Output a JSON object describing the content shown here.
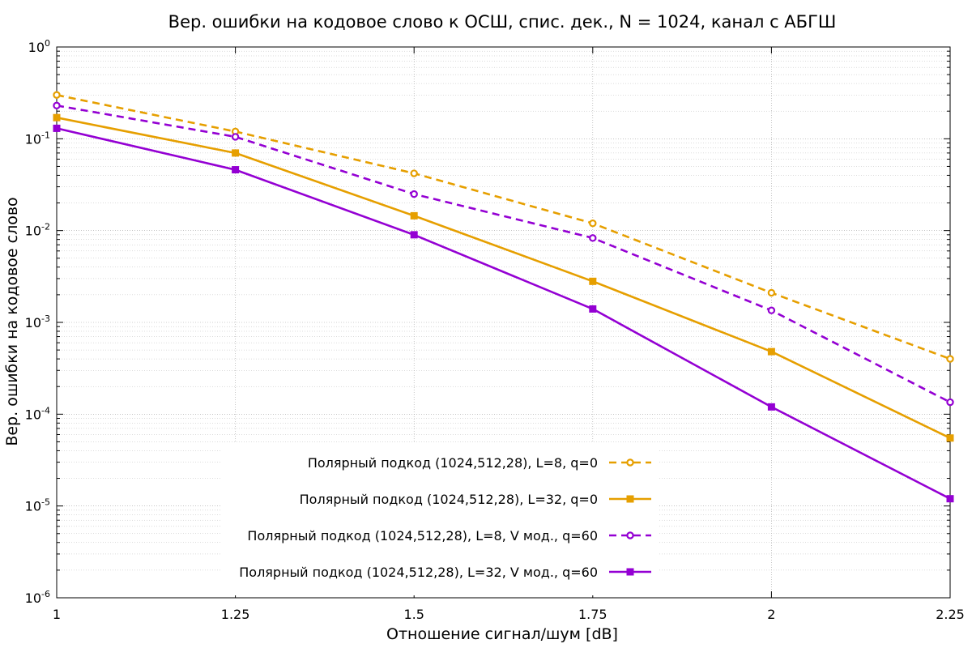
{
  "chart_data": {
    "type": "line",
    "title": "Вер. ошибки на кодовое слово к ОСШ, спис. дек., N = 1024, канал с АБГШ",
    "xlabel": "Отношение сигнал/шум [dB]",
    "ylabel": "Вер. ошибки на кодовое слово",
    "xlim": [
      1,
      2.25
    ],
    "ylim": [
      1e-06,
      1
    ],
    "yscale": "log",
    "grid": true,
    "x_ticks": [
      {
        "value": 1,
        "label": "1"
      },
      {
        "value": 1.25,
        "label": "1.25"
      },
      {
        "value": 1.5,
        "label": "1.5"
      },
      {
        "value": 1.75,
        "label": "1.75"
      },
      {
        "value": 2,
        "label": "2"
      },
      {
        "value": 2.25,
        "label": "2.25"
      }
    ],
    "y_ticks": [
      {
        "exp": 0,
        "base": "10",
        "sup": "0"
      },
      {
        "exp": -1,
        "base": "10",
        "sup": "-1"
      },
      {
        "exp": -2,
        "base": "10",
        "sup": "-2"
      },
      {
        "exp": -3,
        "base": "10",
        "sup": "-3"
      },
      {
        "exp": -4,
        "base": "10",
        "sup": "-4"
      },
      {
        "exp": -5,
        "base": "10",
        "sup": "-5"
      },
      {
        "exp": -6,
        "base": "10",
        "sup": "-6"
      }
    ],
    "legend_position": "bottom-center",
    "x": [
      1,
      1.25,
      1.5,
      1.75,
      2,
      2.25
    ],
    "series": [
      {
        "name": "Полярный подкод (1024,512,28), L=8, q=0",
        "color": "#e69f00",
        "dash": true,
        "marker": "circle",
        "values": [
          0.3,
          0.12,
          0.042,
          0.012,
          0.0021,
          0.0004
        ]
      },
      {
        "name": "Полярный подкод (1024,512,28), L=32, q=0",
        "color": "#e69f00",
        "dash": false,
        "marker": "square",
        "values": [
          0.17,
          0.07,
          0.0145,
          0.0028,
          0.00048,
          5.5e-05
        ]
      },
      {
        "name": "Полярный подкод (1024,512,28), L=8, V мод., q=60",
        "color": "#9400d3",
        "dash": true,
        "marker": "circle",
        "values": [
          0.23,
          0.105,
          0.025,
          0.0083,
          0.00135,
          0.000135
        ]
      },
      {
        "name": "Полярный подкод (1024,512,28), L=32, V мод., q=60",
        "color": "#9400d3",
        "dash": false,
        "marker": "square",
        "values": [
          0.13,
          0.046,
          0.009,
          0.0014,
          0.00012,
          1.2e-05
        ]
      }
    ]
  }
}
